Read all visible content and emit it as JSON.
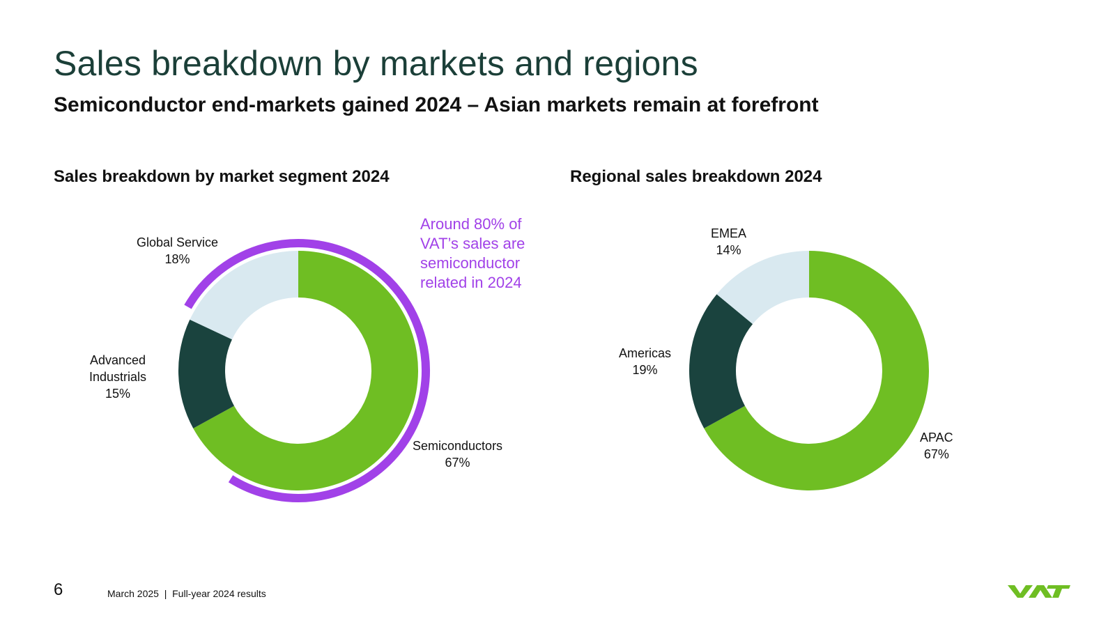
{
  "page": {
    "title": "Sales breakdown by markets and regions",
    "subtitle": "Semiconductor end-markets gained 2024 – Asian markets remain at forefront",
    "page_number": "6",
    "footer_text": "March 2025  |  Full-year 2024 results",
    "logo_text": "VAT"
  },
  "callout": {
    "lines": [
      "Around 80% of",
      "VAT’s sales are",
      "semiconductor",
      "related in 2024"
    ],
    "color": "#a141e8"
  },
  "colors": {
    "green": "#6fbe23",
    "dark": "#1a433e",
    "light": "#d9e9f0",
    "purple": "#a141e8"
  },
  "chart_data": [
    {
      "type": "pie",
      "donut": true,
      "title": "Sales breakdown by market segment 2024",
      "categories": [
        "Semiconductors",
        "Advanced Industrials",
        "Global Service"
      ],
      "values": [
        67,
        15,
        18
      ],
      "labels": [
        {
          "name": [
            "Semiconductors"
          ],
          "value": "67%"
        },
        {
          "name": [
            "Advanced",
            "Industrials"
          ],
          "value": "15%"
        },
        {
          "name": [
            "Global Service"
          ],
          "value": "18%"
        }
      ],
      "colors": [
        "#6fbe23",
        "#1a433e",
        "#d9e9f0"
      ],
      "highlight": {
        "covers_percent": 80,
        "color": "#a141e8"
      }
    },
    {
      "type": "pie",
      "donut": true,
      "title": "Regional sales breakdown 2024",
      "categories": [
        "APAC",
        "Americas",
        "EMEA"
      ],
      "values": [
        67,
        19,
        14
      ],
      "labels": [
        {
          "name": [
            "APAC"
          ],
          "value": "67%"
        },
        {
          "name": [
            "Americas"
          ],
          "value": "19%"
        },
        {
          "name": [
            "EMEA"
          ],
          "value": "14%"
        }
      ],
      "colors": [
        "#6fbe23",
        "#1a433e",
        "#d9e9f0"
      ]
    }
  ]
}
